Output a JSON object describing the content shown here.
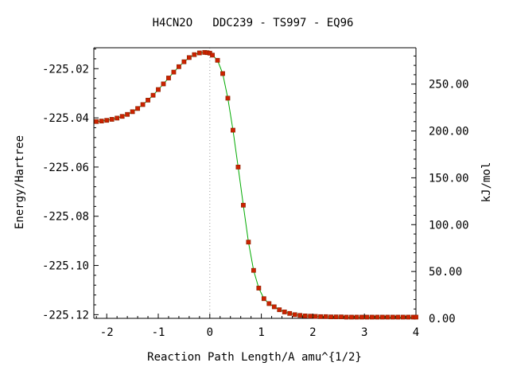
{
  "chart_data": {
    "type": "line",
    "title": "H4CN2O   DDC239 - TS997 - EQ96",
    "xlabel": "Reaction Path Length/A amu^{1/2}",
    "ylabel": "Energy/Hartree",
    "y2label": "kJ/mol",
    "xlim": [
      -2.25,
      4.0
    ],
    "ylim": [
      -225.1215,
      -225.0115
    ],
    "y2lim": [
      0.0,
      288.8
    ],
    "x_ticks": [
      -2,
      -1,
      0,
      1,
      2,
      3,
      4
    ],
    "x_tick_labels": [
      "-2",
      "-1",
      "0",
      "1",
      "2",
      "3",
      "4"
    ],
    "y_ticks": [
      -225.02,
      -225.04,
      -225.06,
      -225.08,
      -225.1,
      -225.12
    ],
    "y_tick_labels": [
      "-225.02",
      "-225.04",
      "-225.06",
      "-225.08",
      "-225.10",
      "-225.12"
    ],
    "y2_ticks": [
      250,
      200,
      150,
      100,
      50,
      0
    ],
    "y2_tick_labels": [
      "250.00",
      "200.00",
      "150.00",
      "100.00",
      "50.00",
      "0.00"
    ],
    "ts_marker_x": 0,
    "grid": false,
    "line_color": "#00aa00",
    "marker_color": "#cc2200",
    "series": [
      {
        "x": [
          -2.2,
          -2.1,
          -2.0,
          -1.9,
          -1.8,
          -1.7,
          -1.6,
          -1.5,
          -1.4,
          -1.3,
          -1.2,
          -1.1,
          -1.0,
          -0.9,
          -0.8,
          -0.7,
          -0.6,
          -0.5,
          -0.4,
          -0.3,
          -0.2,
          -0.1,
          -0.05,
          0.0,
          0.05,
          0.15,
          0.25,
          0.35,
          0.45,
          0.55,
          0.65,
          0.75,
          0.85,
          0.95,
          1.05,
          1.15,
          1.25,
          1.35,
          1.45,
          1.55,
          1.65,
          1.75,
          1.85,
          1.95,
          2.05,
          2.15,
          2.25,
          2.35,
          2.45,
          2.55,
          2.65,
          2.75,
          2.85,
          2.95,
          3.05,
          3.15,
          3.25,
          3.35,
          3.45,
          3.55,
          3.65,
          3.75,
          3.85,
          3.95,
          4.0
        ],
        "y": [
          -225.0415,
          -225.0413,
          -225.041,
          -225.0406,
          -225.0401,
          -225.0394,
          -225.0386,
          -225.0375,
          -225.0362,
          -225.0346,
          -225.0328,
          -225.0308,
          -225.0285,
          -225.0262,
          -225.0238,
          -225.0214,
          -225.0192,
          -225.0172,
          -225.0155,
          -225.0143,
          -225.0136,
          -225.0134,
          -225.0135,
          -225.0137,
          -225.0145,
          -225.0166,
          -225.022,
          -225.032,
          -225.045,
          -225.06,
          -225.0755,
          -225.0905,
          -225.102,
          -225.1092,
          -225.1135,
          -225.1155,
          -225.1168,
          -225.118,
          -225.1189,
          -225.1195,
          -225.12,
          -225.1203,
          -225.1205,
          -225.1206,
          -225.1207,
          -225.1208,
          -225.1208,
          -225.1209,
          -225.1209,
          -225.1209,
          -225.121,
          -225.121,
          -225.121,
          -225.121,
          -225.121,
          -225.121,
          -225.121,
          -225.121,
          -225.121,
          -225.121,
          -225.121,
          -225.121,
          -225.121,
          -225.121,
          -225.121
        ]
      }
    ]
  }
}
